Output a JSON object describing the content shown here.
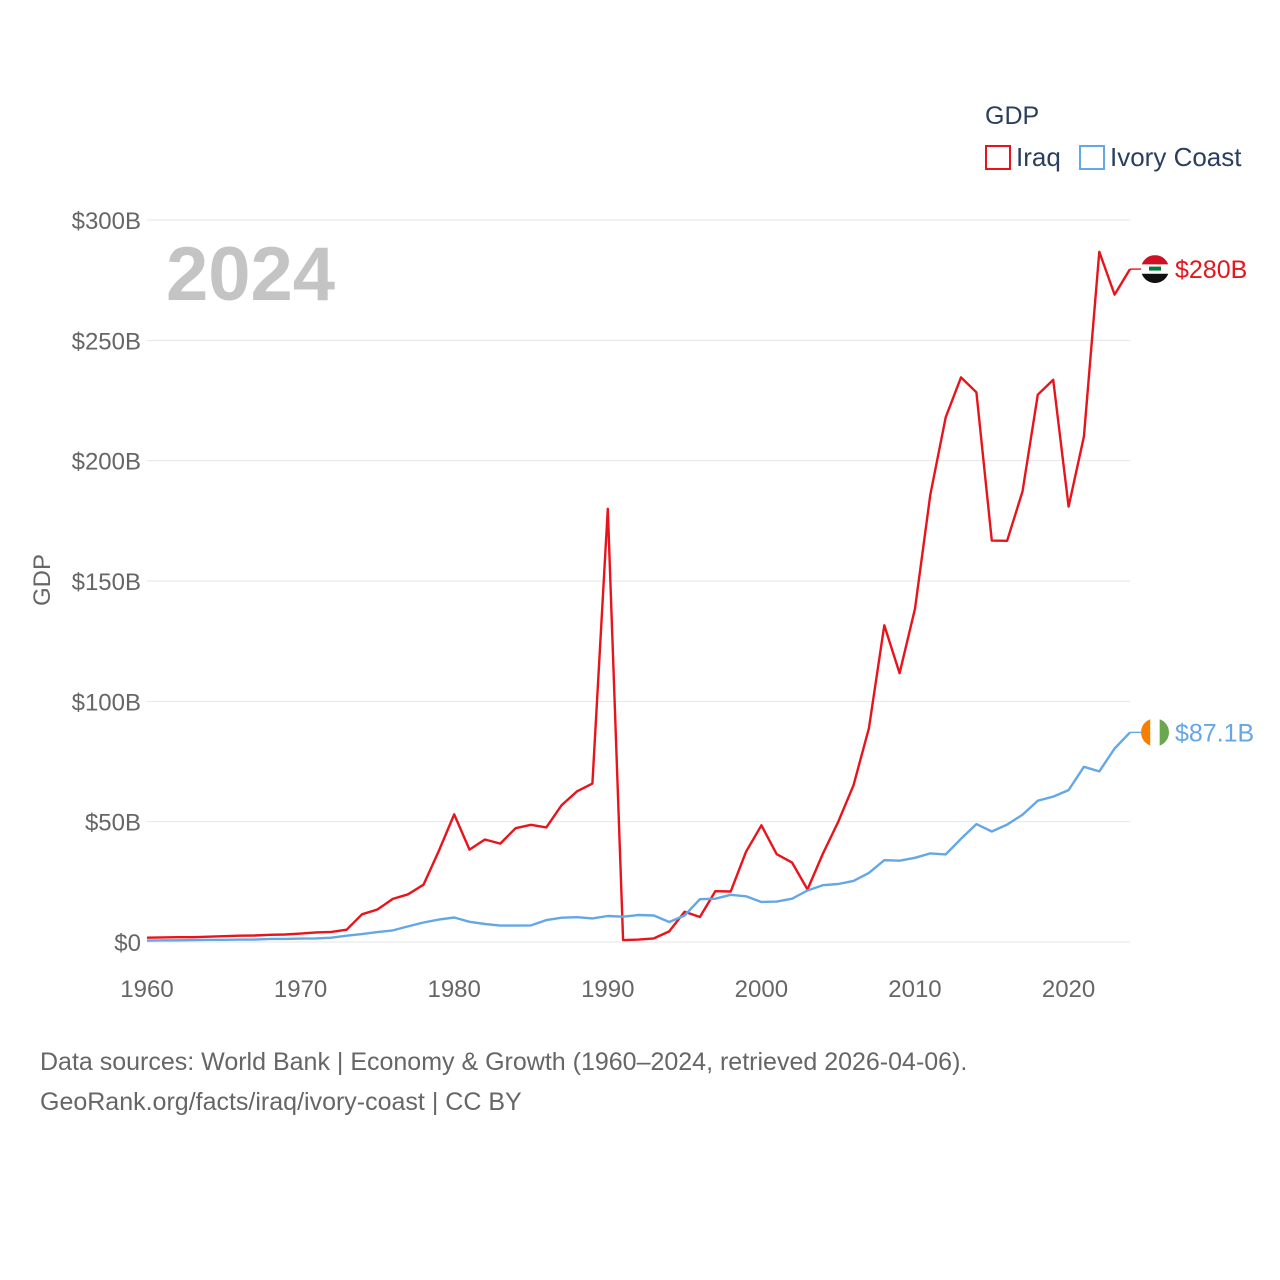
{
  "chart_data": {
    "type": "line",
    "title": "",
    "year_label": "2024",
    "xlabel": "",
    "ylabel": "GDP",
    "xlim": [
      1960,
      2024
    ],
    "ylim": [
      0,
      300
    ],
    "x_ticks": [
      {
        "value": 1960,
        "label": "1960"
      },
      {
        "value": 1970,
        "label": "1970"
      },
      {
        "value": 1980,
        "label": "1980"
      },
      {
        "value": 1990,
        "label": "1990"
      },
      {
        "value": 2000,
        "label": "2000"
      },
      {
        "value": 2010,
        "label": "2010"
      },
      {
        "value": 2020,
        "label": "2020"
      }
    ],
    "y_ticks": [
      {
        "value": 0,
        "label": "$0"
      },
      {
        "value": 50,
        "label": "$50B"
      },
      {
        "value": 100,
        "label": "$100B"
      },
      {
        "value": 150,
        "label": "$150B"
      },
      {
        "value": 200,
        "label": "$200B"
      },
      {
        "value": 250,
        "label": "$250B"
      },
      {
        "value": 300,
        "label": "$300B"
      }
    ],
    "grid": true,
    "legend": {
      "title": "GDP",
      "position": "top-right"
    },
    "units": "billions USD",
    "x": [
      1960,
      1961,
      1962,
      1963,
      1964,
      1965,
      1966,
      1967,
      1968,
      1969,
      1970,
      1971,
      1972,
      1973,
      1974,
      1975,
      1976,
      1977,
      1978,
      1979,
      1980,
      1981,
      1982,
      1983,
      1984,
      1985,
      1986,
      1987,
      1988,
      1989,
      1990,
      1991,
      1992,
      1993,
      1994,
      1995,
      1996,
      1997,
      1998,
      1999,
      2000,
      2001,
      2002,
      2003,
      2004,
      2005,
      2006,
      2007,
      2008,
      2009,
      2010,
      2011,
      2012,
      2013,
      2014,
      2015,
      2016,
      2017,
      2018,
      2019,
      2020,
      2021,
      2022,
      2023,
      2024
    ],
    "series": [
      {
        "name": "Iraq",
        "color": "#e8141c",
        "end_label": "$280B",
        "flag": "iraq-flag-icon",
        "values": [
          1.8,
          1.9,
          2.0,
          2.0,
          2.2,
          2.4,
          2.6,
          2.7,
          3.0,
          3.1,
          3.5,
          4.0,
          4.2,
          5.1,
          11.5,
          13.5,
          17.9,
          19.8,
          23.8,
          37.8,
          53.0,
          38.4,
          42.6,
          40.9,
          47.3,
          48.7,
          47.6,
          56.9,
          62.6,
          65.8,
          180.0,
          0.8,
          1.0,
          1.5,
          4.4,
          12.6,
          10.4,
          21.1,
          21.0,
          37.5,
          48.5,
          36.5,
          33.0,
          21.8,
          36.6,
          49.9,
          65.1,
          88.8,
          131.6,
          111.7,
          138.5,
          185.8,
          218.0,
          234.6,
          228.4,
          166.8,
          166.7,
          187.2,
          227.4,
          233.6,
          180.9,
          210.0,
          286.8,
          269.0,
          279.6
        ]
      },
      {
        "name": "Ivory Coast",
        "color": "#64a7e7",
        "end_label": "$87.1B",
        "flag": "ivory-coast-flag-icon",
        "values": [
          0.6,
          0.7,
          0.7,
          0.8,
          0.9,
          0.9,
          1.0,
          1.0,
          1.3,
          1.3,
          1.4,
          1.5,
          1.8,
          2.6,
          3.3,
          4.1,
          4.8,
          6.5,
          8.1,
          9.3,
          10.2,
          8.4,
          7.5,
          6.8,
          6.8,
          6.9,
          9.1,
          10.1,
          10.3,
          9.8,
          10.8,
          10.5,
          11.2,
          11.0,
          8.3,
          11.0,
          17.8,
          18.0,
          19.6,
          19.0,
          16.6,
          16.8,
          18.0,
          21.4,
          23.6,
          24.1,
          25.4,
          28.7,
          34.0,
          33.8,
          35.0,
          36.8,
          36.4,
          42.9,
          49.0,
          45.9,
          48.8,
          52.9,
          58.7,
          60.4,
          63.1,
          72.8,
          70.9,
          80.4,
          87.1
        ]
      }
    ]
  },
  "footer": {
    "line1": "Data sources: World Bank | Economy & Growth (1960–2024, retrieved 2026-04-06).",
    "line2": "GeoRank.org/facts/iraq/ivory-coast | CC BY"
  }
}
